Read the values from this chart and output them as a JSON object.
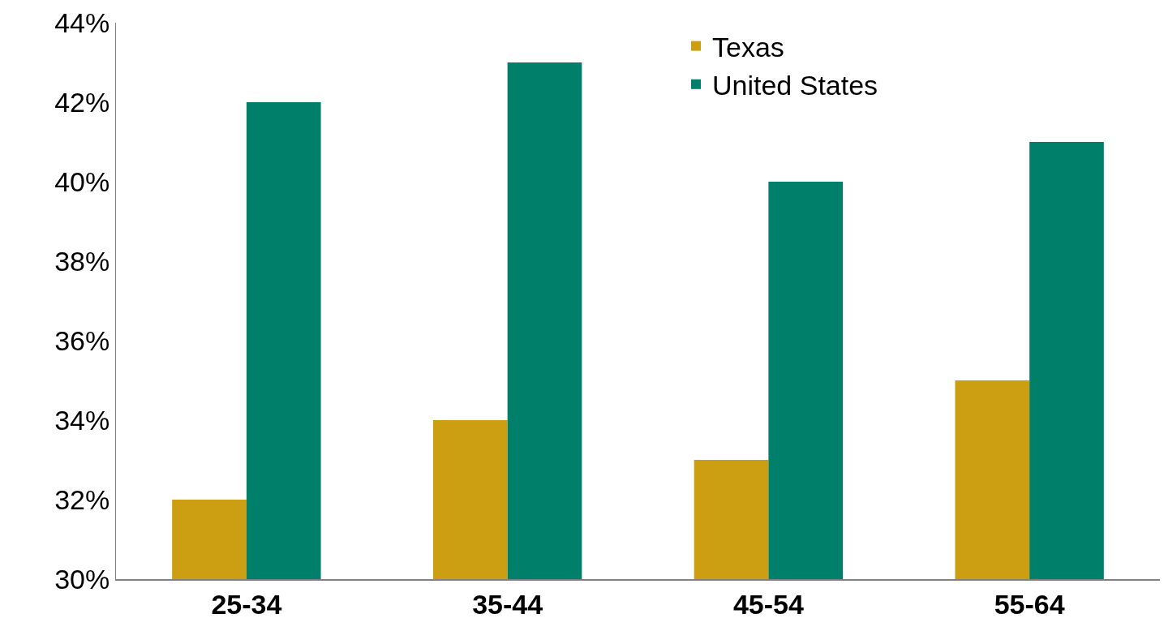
{
  "chart_data": {
    "type": "bar",
    "categories": [
      "25-34",
      "35-44",
      "45-54",
      "55-64"
    ],
    "series": [
      {
        "name": "Texas",
        "color": "#cc9e12",
        "values": [
          32,
          34,
          33,
          35
        ]
      },
      {
        "name": "United States",
        "color": "#00806a",
        "values": [
          42,
          43,
          40,
          41
        ]
      }
    ],
    "ylim": [
      30,
      44
    ],
    "yticks": [
      {
        "value": 30,
        "label": "30%"
      },
      {
        "value": 32,
        "label": "32%"
      },
      {
        "value": 34,
        "label": "34%"
      },
      {
        "value": 36,
        "label": "36%"
      },
      {
        "value": 38,
        "label": "38%"
      },
      {
        "value": 40,
        "label": "40%"
      },
      {
        "value": 42,
        "label": "42%"
      },
      {
        "value": 44,
        "label": "44%"
      }
    ],
    "legend": "top right"
  }
}
